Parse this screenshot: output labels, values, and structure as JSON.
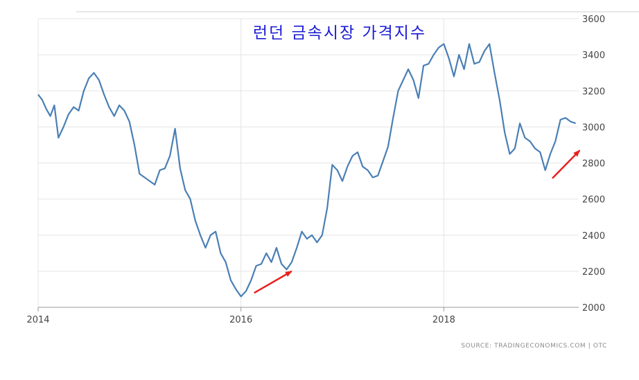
{
  "chart_data": {
    "type": "line",
    "title": "런던 금속시장 가격지수",
    "source": "SOURCE: TRADINGECONOMICS.COM  |  OTC",
    "xlabel": "",
    "ylabel": "",
    "x_ticks": [
      "2014",
      "2016",
      "2018"
    ],
    "x_tick_years": [
      2014,
      2016,
      2018
    ],
    "y_ticks": [
      "3600",
      "3400",
      "3200",
      "3000",
      "2800",
      "2600",
      "2400",
      "2200",
      "2000"
    ],
    "y_tick_values": [
      3600,
      3400,
      3200,
      3000,
      2800,
      2600,
      2400,
      2200,
      2000
    ],
    "xlim": [
      2014.0,
      2019.33
    ],
    "ylim": [
      2000,
      3600
    ],
    "grid": true,
    "line_color": "#4a7fb5",
    "annotation_color": "#e8211d",
    "series": [
      {
        "name": "",
        "x": [
          2014.0,
          2014.04,
          2014.08,
          2014.12,
          2014.16,
          2014.2,
          2014.25,
          2014.3,
          2014.35,
          2014.4,
          2014.45,
          2014.5,
          2014.55,
          2014.6,
          2014.65,
          2014.7,
          2014.75,
          2014.8,
          2014.85,
          2014.9,
          2014.95,
          2015.0,
          2015.05,
          2015.1,
          2015.15,
          2015.2,
          2015.25,
          2015.3,
          2015.35,
          2015.4,
          2015.45,
          2015.5,
          2015.55,
          2015.6,
          2015.65,
          2015.7,
          2015.75,
          2015.8,
          2015.85,
          2015.9,
          2015.95,
          2016.0,
          2016.05,
          2016.1,
          2016.15,
          2016.2,
          2016.25,
          2016.3,
          2016.35,
          2016.4,
          2016.45,
          2016.5,
          2016.55,
          2016.6,
          2016.65,
          2016.7,
          2016.75,
          2016.8,
          2016.85,
          2016.9,
          2016.95,
          2017.0,
          2017.05,
          2017.1,
          2017.15,
          2017.2,
          2017.25,
          2017.3,
          2017.35,
          2017.4,
          2017.45,
          2017.5,
          2017.55,
          2017.6,
          2017.65,
          2017.7,
          2017.75,
          2017.8,
          2017.85,
          2017.9,
          2017.95,
          2018.0,
          2018.05,
          2018.1,
          2018.15,
          2018.2,
          2018.25,
          2018.3,
          2018.35,
          2018.4,
          2018.45,
          2018.5,
          2018.55,
          2018.6,
          2018.65,
          2018.7,
          2018.75,
          2018.8,
          2018.85,
          2018.9,
          2018.95,
          2019.0,
          2019.05,
          2019.1,
          2019.15,
          2019.2,
          2019.25,
          2019.3
        ],
        "values": [
          3180,
          3150,
          3100,
          3060,
          3120,
          2940,
          3000,
          3070,
          3110,
          3090,
          3200,
          3270,
          3300,
          3260,
          3180,
          3110,
          3060,
          3120,
          3090,
          3030,
          2900,
          2740,
          2720,
          2700,
          2680,
          2760,
          2770,
          2840,
          2990,
          2770,
          2650,
          2600,
          2480,
          2400,
          2330,
          2400,
          2420,
          2300,
          2250,
          2150,
          2100,
          2060,
          2090,
          2150,
          2230,
          2240,
          2300,
          2250,
          2330,
          2240,
          2210,
          2250,
          2330,
          2420,
          2380,
          2400,
          2360,
          2400,
          2550,
          2790,
          2760,
          2700,
          2780,
          2840,
          2860,
          2780,
          2760,
          2720,
          2730,
          2810,
          2890,
          3050,
          3200,
          3260,
          3320,
          3260,
          3160,
          3340,
          3350,
          3400,
          3440,
          3460,
          3380,
          3280,
          3400,
          3320,
          3460,
          3350,
          3360,
          3420,
          3460,
          3300,
          3150,
          2970,
          2850,
          2880,
          3020,
          2940,
          2920,
          2880,
          2860,
          2760,
          2850,
          2920,
          3040,
          3050,
          3030,
          3020
        ]
      }
    ],
    "annotations": [
      {
        "label": "",
        "x1": 2016.13,
        "y1": 2080,
        "x2": 2016.5,
        "y2": 2200
      },
      {
        "label": "",
        "x1": 2019.07,
        "y1": 2715,
        "x2": 2019.34,
        "y2": 2870
      }
    ]
  }
}
